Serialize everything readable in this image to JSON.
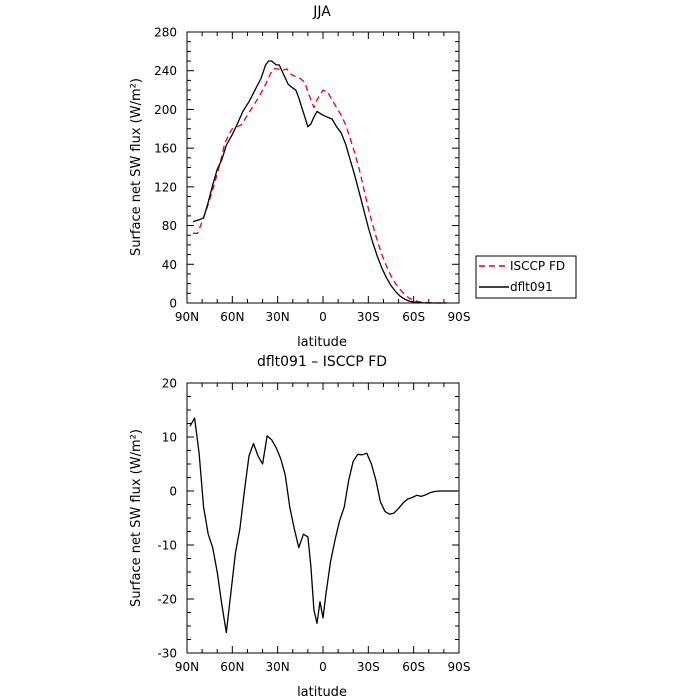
{
  "chart_data": [
    {
      "type": "line",
      "title": "JJA",
      "xlabel": "latitude",
      "ylabel": "Surface net SW flux (W/m²)",
      "ylim": [
        0,
        280
      ],
      "xlim": [
        90,
        -90
      ],
      "x_tick_labels": [
        "90N",
        "60N",
        "30N",
        "0",
        "30S",
        "60S",
        "90S"
      ],
      "y_ticks": [
        0,
        40,
        80,
        120,
        160,
        200,
        240,
        280
      ],
      "grid": false,
      "legend": "right",
      "series": [
        {
          "name": "ISCCP FD",
          "color": "#e8001c",
          "dash": "dashed",
          "x": [
            86,
            83,
            80,
            76,
            72,
            68,
            65,
            62,
            60,
            57,
            54,
            50,
            46,
            42,
            38,
            35,
            33,
            30,
            27,
            24,
            21,
            18,
            15,
            12,
            10,
            8,
            6,
            4,
            2,
            0,
            -3,
            -6,
            -9,
            -12,
            -15,
            -18,
            -21,
            -24,
            -27,
            -30,
            -33,
            -36,
            -39,
            -42,
            -45,
            -48,
            -51,
            -54,
            -57,
            -60,
            -63,
            -66,
            -70,
            -74,
            -78,
            -82
          ],
          "values": [
            72,
            72,
            84,
            102,
            122,
            145,
            165,
            175,
            180,
            182,
            184,
            194,
            204,
            214,
            226,
            236,
            242,
            242,
            240,
            242,
            236,
            234,
            232,
            228,
            218,
            210,
            202,
            210,
            215,
            220,
            218,
            210,
            202,
            194,
            184,
            170,
            155,
            138,
            118,
            98,
            80,
            64,
            50,
            38,
            28,
            20,
            14,
            9,
            5,
            3,
            1.5,
            0.8,
            0.3,
            0.1,
            0,
            0
          ]
        },
        {
          "name": "dflt091",
          "color": "#000000",
          "dash": "solid",
          "x": [
            86,
            82,
            79,
            76,
            73,
            70,
            67,
            64,
            60,
            57,
            53,
            49,
            45,
            41,
            38,
            36,
            34,
            31,
            29,
            26,
            23,
            20,
            18,
            16,
            14,
            12,
            10,
            8,
            6,
            4,
            2,
            0,
            -3,
            -6,
            -9,
            -12,
            -15,
            -18,
            -21,
            -24,
            -27,
            -30,
            -33,
            -36,
            -39,
            -42,
            -45,
            -48,
            -51,
            -54,
            -57,
            -60,
            -63,
            -66,
            -70,
            -74,
            -78,
            -82
          ],
          "values": [
            84,
            86,
            88,
            104,
            122,
            138,
            148,
            163,
            174,
            184,
            198,
            208,
            220,
            232,
            246,
            250,
            250,
            246,
            246,
            236,
            226,
            222,
            220,
            212,
            202,
            192,
            182,
            185,
            192,
            198,
            196,
            194,
            192,
            190,
            182,
            176,
            164,
            148,
            132,
            114,
            96,
            78,
            62,
            48,
            36,
            26,
            18,
            12,
            7,
            4,
            2,
            1,
            0.5,
            0.2,
            0,
            0,
            0,
            0
          ]
        }
      ]
    },
    {
      "type": "line",
      "title": "dflt091 – ISCCP FD",
      "xlabel": "latitude",
      "ylabel": "Surface net SW flux (W/m²)",
      "ylim": [
        -30,
        20
      ],
      "xlim": [
        90,
        -90
      ],
      "x_tick_labels": [
        "90N",
        "60N",
        "30N",
        "0",
        "30S",
        "60S",
        "90S"
      ],
      "y_ticks": [
        -30,
        -20,
        -10,
        0,
        10,
        20
      ],
      "grid": false,
      "series": [
        {
          "name": "",
          "color": "#000000",
          "dash": "solid",
          "x": [
            88,
            85,
            82,
            79,
            76,
            73,
            70,
            67,
            64,
            61,
            58,
            55,
            52,
            49,
            46,
            43,
            40,
            37,
            34,
            31,
            28,
            25,
            22,
            19,
            16,
            13,
            10,
            8,
            6,
            4,
            2,
            0,
            -2,
            -5,
            -8,
            -11,
            -14,
            -17,
            -20,
            -23,
            -26,
            -29,
            -32,
            -35,
            -38,
            -41,
            -44,
            -47,
            -50,
            -53,
            -56,
            -59,
            -62,
            -65,
            -68,
            -71,
            -74,
            -77,
            -80,
            -83,
            -86,
            -89
          ],
          "values": [
            12,
            13.5,
            7,
            -3,
            -8,
            -10.5,
            -15,
            -21,
            -26.2,
            -19,
            -11.5,
            -7,
            0,
            6.5,
            8.8,
            6.5,
            5,
            10.2,
            9.5,
            8,
            6,
            3,
            -3,
            -7,
            -10.5,
            -8,
            -8.5,
            -14,
            -22,
            -24.5,
            -20.5,
            -23.5,
            -19,
            -13,
            -9,
            -5.5,
            -3,
            2,
            5.5,
            6.8,
            6.7,
            7,
            5,
            2,
            -2,
            -3.8,
            -4.3,
            -4.1,
            -3.2,
            -2.2,
            -1.5,
            -1.2,
            -0.8,
            -1,
            -0.7,
            -0.3,
            -0.1,
            0,
            0,
            0,
            0,
            0
          ]
        }
      ]
    }
  ]
}
